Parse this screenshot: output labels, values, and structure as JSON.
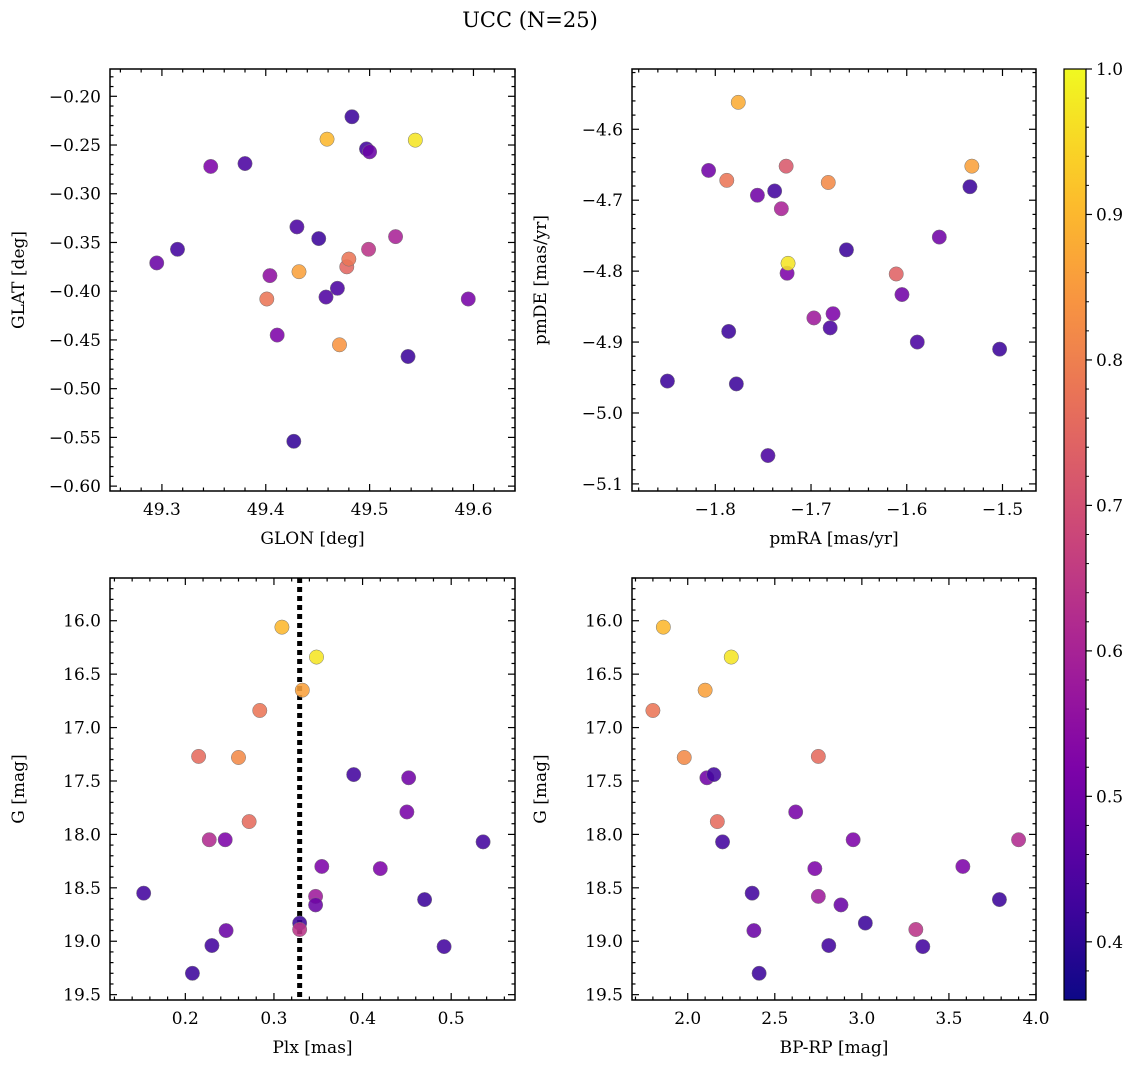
{
  "figure": {
    "title": "UCC (N=25)"
  },
  "colorbar": {
    "vmin": 0.36,
    "vmax": 1.0,
    "ticks": [
      0.4,
      0.5,
      0.6,
      0.7,
      0.8,
      0.9,
      1.0
    ],
    "tick_labels": [
      "0.4",
      "0.5",
      "0.6",
      "0.7",
      "0.8",
      "0.9",
      "1.0"
    ],
    "colormap": "plasma"
  },
  "chart_data": [
    {
      "type": "scatter",
      "xlabel": "GLON [deg]",
      "ylabel": "GLAT [deg]",
      "xlim": [
        49.25,
        49.64
      ],
      "ylim": [
        -0.605,
        -0.172
      ],
      "y_inverted": false,
      "xticks": [
        49.3,
        49.4,
        49.5,
        49.6
      ],
      "xtick_labels": [
        "49.3",
        "49.4",
        "49.5",
        "49.6"
      ],
      "yticks": [
        -0.6,
        -0.55,
        -0.5,
        -0.45,
        -0.4,
        -0.35,
        -0.3,
        -0.25,
        -0.2
      ],
      "ytick_labels": [
        "−0.60",
        "−0.55",
        "−0.50",
        "−0.45",
        "−0.40",
        "−0.35",
        "−0.30",
        "−0.25",
        "−0.20"
      ],
      "x": [
        49.295,
        49.315,
        49.347,
        49.38,
        49.401,
        49.404,
        49.411,
        49.427,
        49.43,
        49.432,
        49.451,
        49.458,
        49.459,
        49.469,
        49.471,
        49.478,
        49.48,
        49.483,
        49.497,
        49.499,
        49.5,
        49.525,
        49.537,
        49.544,
        49.595
      ],
      "y": [
        -0.371,
        -0.357,
        -0.272,
        -0.269,
        -0.408,
        -0.384,
        -0.445,
        -0.554,
        -0.334,
        -0.38,
        -0.346,
        -0.406,
        -0.244,
        -0.397,
        -0.455,
        -0.375,
        -0.367,
        -0.221,
        -0.254,
        -0.357,
        -0.257,
        -0.344,
        -0.467,
        -0.245,
        -0.408
      ],
      "c": [
        0.49,
        0.43,
        0.52,
        0.44,
        0.78,
        0.55,
        0.52,
        0.41,
        0.44,
        0.86,
        0.42,
        0.45,
        0.9,
        0.44,
        0.84,
        0.75,
        0.78,
        0.42,
        0.43,
        0.64,
        0.49,
        0.6,
        0.42,
        0.97,
        0.51
      ]
    },
    {
      "type": "scatter",
      "xlabel": "pmRA [mas/yr]",
      "ylabel": "pmDE [mas/yr]",
      "xlim": [
        -1.887,
        -1.465
      ],
      "ylim": [
        -5.11,
        -4.515
      ],
      "y_inverted": false,
      "xticks": [
        -1.8,
        -1.7,
        -1.6,
        -1.5
      ],
      "xtick_labels": [
        "−1.8",
        "−1.7",
        "−1.6",
        "−1.5"
      ],
      "yticks": [
        -5.1,
        -5.0,
        -4.9,
        -4.8,
        -4.7,
        -4.6
      ],
      "ytick_labels": [
        "−5.1",
        "−5.0",
        "−4.9",
        "−4.8",
        "−4.7",
        "−4.6"
      ],
      "x": [
        -1.85,
        -1.807,
        -1.788,
        -1.786,
        -1.778,
        -1.776,
        -1.756,
        -1.745,
        -1.738,
        -1.731,
        -1.726,
        -1.725,
        -1.724,
        -1.697,
        -1.682,
        -1.68,
        -1.677,
        -1.663,
        -1.611,
        -1.605,
        -1.589,
        -1.566,
        -1.534,
        -1.532,
        -1.503
      ],
      "y": [
        -4.955,
        -4.658,
        -4.672,
        -4.885,
        -4.959,
        -4.562,
        -4.693,
        -5.06,
        -4.687,
        -4.712,
        -4.652,
        -4.803,
        -4.789,
        -4.866,
        -4.675,
        -4.88,
        -4.86,
        -4.77,
        -4.804,
        -4.833,
        -4.9,
        -4.752,
        -4.681,
        -4.652,
        -4.91
      ],
      "c": [
        0.42,
        0.5,
        0.78,
        0.42,
        0.42,
        0.88,
        0.5,
        0.44,
        0.43,
        0.6,
        0.72,
        0.52,
        0.97,
        0.58,
        0.82,
        0.44,
        0.52,
        0.42,
        0.74,
        0.5,
        0.44,
        0.5,
        0.42,
        0.86,
        0.42
      ]
    },
    {
      "type": "scatter",
      "xlabel": "Plx [mas]",
      "ylabel": "G [mag]",
      "xlim": [
        0.115,
        0.572
      ],
      "ylim": [
        19.55,
        15.6
      ],
      "y_inverted": true,
      "xticks": [
        0.2,
        0.3,
        0.4,
        0.5
      ],
      "xtick_labels": [
        "0.2",
        "0.3",
        "0.4",
        "0.5"
      ],
      "yticks": [
        16.0,
        16.5,
        17.0,
        17.5,
        18.0,
        18.5,
        19.0,
        19.5
      ],
      "ytick_labels": [
        "16.0",
        "16.5",
        "17.0",
        "17.5",
        "18.0",
        "18.5",
        "19.0",
        "19.5"
      ],
      "vline": 0.329,
      "x": [
        0.153,
        0.208,
        0.215,
        0.227,
        0.23,
        0.245,
        0.246,
        0.26,
        0.272,
        0.284,
        0.309,
        0.329,
        0.329,
        0.332,
        0.347,
        0.347,
        0.348,
        0.354,
        0.39,
        0.42,
        0.45,
        0.452,
        0.47,
        0.492,
        0.536
      ],
      "y": [
        18.55,
        19.3,
        17.27,
        18.05,
        19.04,
        18.05,
        18.9,
        17.28,
        17.88,
        16.84,
        16.06,
        18.83,
        18.89,
        16.65,
        18.58,
        18.66,
        16.34,
        18.3,
        17.44,
        18.32,
        17.79,
        17.47,
        18.61,
        19.05,
        18.07
      ],
      "c": [
        0.43,
        0.42,
        0.76,
        0.62,
        0.43,
        0.52,
        0.49,
        0.82,
        0.76,
        0.78,
        0.9,
        0.42,
        0.64,
        0.86,
        0.58,
        0.49,
        0.97,
        0.52,
        0.43,
        0.52,
        0.51,
        0.5,
        0.42,
        0.43,
        0.43
      ]
    },
    {
      "type": "scatter",
      "xlabel": "BP-RP [mag]",
      "ylabel": "G [mag]",
      "xlim": [
        1.68,
        4.0
      ],
      "ylim": [
        19.55,
        15.6
      ],
      "y_inverted": true,
      "xticks": [
        2.0,
        2.5,
        3.0,
        3.5,
        4.0
      ],
      "xtick_labels": [
        "2.0",
        "2.5",
        "3.0",
        "3.5",
        "4.0"
      ],
      "yticks": [
        16.0,
        16.5,
        17.0,
        17.5,
        18.0,
        18.5,
        19.0,
        19.5
      ],
      "ytick_labels": [
        "16.0",
        "16.5",
        "17.0",
        "17.5",
        "18.0",
        "18.5",
        "19.0",
        "19.5"
      ],
      "x": [
        1.8,
        1.86,
        1.98,
        2.1,
        2.11,
        2.15,
        2.17,
        2.2,
        2.25,
        2.37,
        2.38,
        2.41,
        2.62,
        2.73,
        2.75,
        2.75,
        2.81,
        2.88,
        2.95,
        3.02,
        3.31,
        3.35,
        3.58,
        3.79,
        3.9
      ],
      "y": [
        16.84,
        16.06,
        17.28,
        16.65,
        17.47,
        17.44,
        17.88,
        18.07,
        16.34,
        18.55,
        18.9,
        19.3,
        17.79,
        18.32,
        17.27,
        18.58,
        19.04,
        18.66,
        18.05,
        18.83,
        18.89,
        19.05,
        18.3,
        18.61,
        18.05
      ],
      "c": [
        0.78,
        0.9,
        0.82,
        0.86,
        0.5,
        0.43,
        0.76,
        0.43,
        0.97,
        0.43,
        0.49,
        0.42,
        0.51,
        0.52,
        0.76,
        0.58,
        0.43,
        0.49,
        0.52,
        0.42,
        0.64,
        0.43,
        0.52,
        0.42,
        0.62
      ]
    }
  ]
}
